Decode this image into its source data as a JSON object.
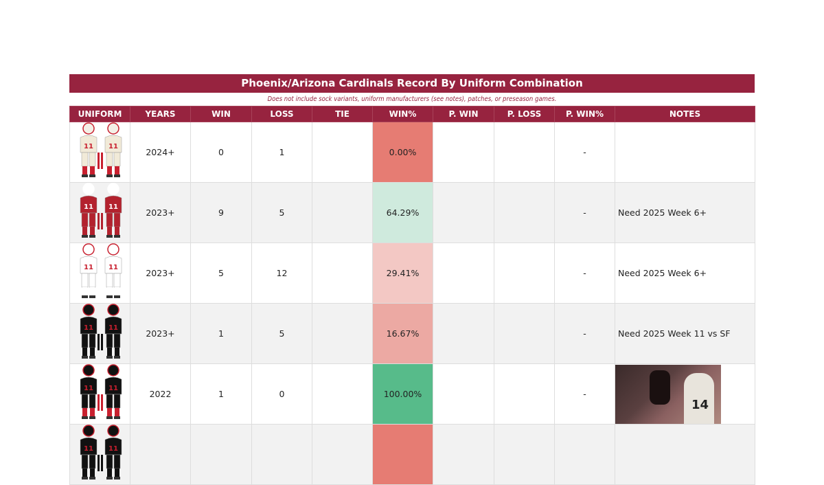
{
  "title": "Phoenix/Arizona Cardinals Record By Uniform Combination",
  "subtitle": "Does not include sock variants, uniform manufacturers (see notes), patches, or preseason games.",
  "columns": [
    "UNIFORM",
    "YEARS",
    "WIN",
    "LOSS",
    "TIE",
    "WIN%",
    "P. WIN",
    "P. LOSS",
    "P. WIN%",
    "NOTES"
  ],
  "colors": {
    "brand": "#97233f"
  },
  "rows": [
    {
      "uniform": {
        "helmet": "#f3efe6",
        "jersey": "#f1ead8",
        "pants": "#f1ead8",
        "socks": "#c8202f",
        "trim": "#c8202f"
      },
      "years": "2024+",
      "win": "0",
      "loss": "1",
      "tie": "",
      "pct": "0.00%",
      "pct_color": "#e67c73",
      "p_win": "",
      "p_loss": "",
      "p_pct": "-",
      "notes": ""
    },
    {
      "uniform": {
        "helmet": "#ffffff",
        "jersey": "#b3222e",
        "pants": "#b3222e",
        "socks": "#b3222e",
        "trim": "#ffffff"
      },
      "years": "2023+",
      "win": "9",
      "loss": "5",
      "tie": "",
      "pct": "64.29%",
      "pct_color": "#cfeadd",
      "p_win": "",
      "p_loss": "",
      "p_pct": "-",
      "notes": "Need 2025 Week 6+"
    },
    {
      "uniform": {
        "helmet": "#ffffff",
        "jersey": "#ffffff",
        "pants": "#ffffff",
        "socks": "#ffffff",
        "trim": "#c8202f"
      },
      "years": "2023+",
      "win": "5",
      "loss": "12",
      "tie": "",
      "pct": "29.41%",
      "pct_color": "#f3c8c4",
      "p_win": "",
      "p_loss": "",
      "p_pct": "-",
      "notes": "Need 2025 Week 6+"
    },
    {
      "uniform": {
        "helmet": "#111111",
        "jersey": "#111111",
        "pants": "#111111",
        "socks": "#111111",
        "trim": "#c8202f"
      },
      "years": "2023+",
      "win": "1",
      "loss": "5",
      "tie": "",
      "pct": "16.67%",
      "pct_color": "#eca9a3",
      "p_win": "",
      "p_loss": "",
      "p_pct": "-",
      "notes": "Need 2025 Week 11 vs SF"
    },
    {
      "uniform": {
        "helmet": "#111111",
        "jersey": "#111111",
        "pants": "#111111",
        "socks": "#c8202f",
        "trim": "#c8202f"
      },
      "years": "2022",
      "win": "1",
      "loss": "0",
      "tie": "",
      "pct": "100.00%",
      "pct_color": "#57bb8a",
      "p_win": "",
      "p_loss": "",
      "p_pct": "-",
      "notes": "",
      "notes_photo": true
    },
    {
      "uniform": {
        "helmet": "#111111",
        "jersey": "#111111",
        "pants": "#111111",
        "socks": "#111111",
        "trim": "#c8202f"
      },
      "years": "",
      "win": "",
      "loss": "",
      "tie": "",
      "pct": "",
      "pct_color": "#e67c73",
      "p_win": "",
      "p_loss": "",
      "p_pct": "",
      "notes": ""
    }
  ]
}
